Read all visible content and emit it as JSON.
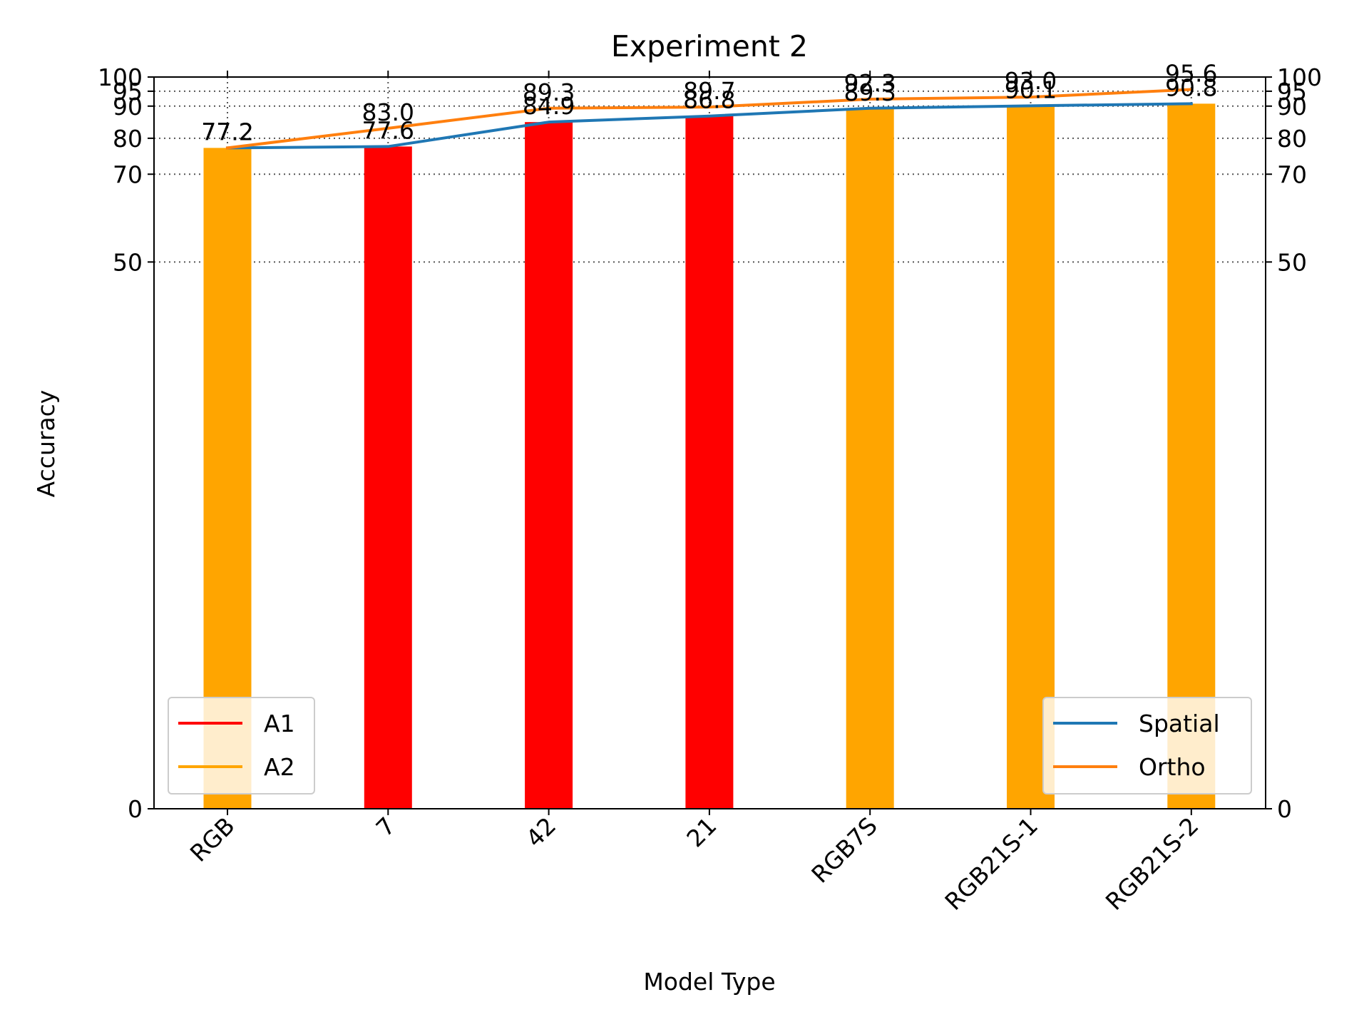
{
  "chart_data": {
    "type": "bar",
    "title": "Experiment 2",
    "xlabel": "Model Type",
    "ylabel": "Accuracy",
    "ylim": [
      0,
      100
    ],
    "y_scale": "symlog",
    "yticks": [
      0,
      50,
      70,
      80,
      90,
      95,
      100
    ],
    "right_axis_ticks": [
      0,
      50,
      70,
      80,
      90,
      95,
      100
    ],
    "grid": true,
    "categories": [
      "RGB",
      "7",
      "42",
      "21",
      "RGB7S",
      "RGB21S-1",
      "RGB21S-2"
    ],
    "bars": {
      "values": [
        77.2,
        77.6,
        84.9,
        86.8,
        89.3,
        90.1,
        90.8
      ],
      "groups": [
        "A2",
        "A1",
        "A1",
        "A1",
        "A2",
        "A2",
        "A2"
      ]
    },
    "bar_legend": {
      "placement": "lower-left",
      "entries": [
        {
          "name": "A1",
          "color": "#ff0000"
        },
        {
          "name": "A2",
          "color": "#ffa500"
        }
      ]
    },
    "series": [
      {
        "name": "Spatial",
        "color": "#1f77b4",
        "values": [
          77.2,
          77.6,
          84.9,
          86.8,
          89.3,
          90.1,
          90.8
        ]
      },
      {
        "name": "Ortho",
        "color": "#ff7f0e",
        "values": [
          77.2,
          83.0,
          89.3,
          89.7,
          92.3,
          93.0,
          95.6
        ]
      }
    ],
    "line_legend": {
      "placement": "lower-right"
    },
    "data_labels": {
      "Spatial": [
        "77.2",
        "77.6",
        "84.9",
        "86.8",
        "89.3",
        "90.1",
        "90.8"
      ],
      "Ortho": [
        "77.2",
        "83.0",
        "89.3",
        "89.7",
        "92.3",
        "93.0",
        "95.6"
      ]
    }
  }
}
